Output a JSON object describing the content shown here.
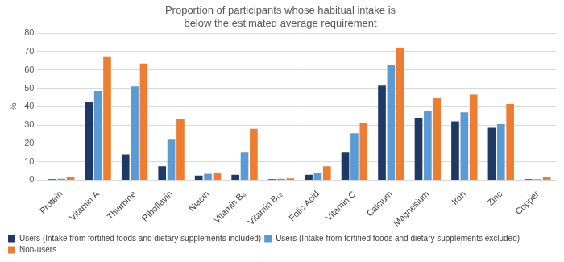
{
  "chart_data": {
    "type": "bar",
    "title": [
      "Proportion of participants whose habitual intake is",
      "below the estimated average requirement"
    ],
    "ylabel": "%",
    "categories": [
      "Protein",
      "Vitamin A",
      "Thiamine",
      "Riboflavin",
      "Niacin",
      "Vitamin B₆",
      "Vitamin B₁₂",
      "Folic Acid",
      "Vitamin C",
      "Calcium",
      "Magnesium",
      "Iron",
      "Zinc",
      "Copper"
    ],
    "series": [
      {
        "name": "Users (Intake from fortified foods and dietary supplements included)",
        "color": "#203864",
        "values": [
          0.5,
          42.5,
          14,
          7.5,
          2.5,
          3,
          0.5,
          3,
          15,
          51.5,
          34,
          32,
          28.5,
          0.5
        ]
      },
      {
        "name": "Users (Intake from fortified foods and dietary supplements excluded)",
        "color": "#5b9bd5",
        "values": [
          0.8,
          48.5,
          51,
          22,
          3.5,
          15,
          0.8,
          4,
          25.5,
          62.5,
          37.5,
          37,
          30.5,
          0.5
        ]
      },
      {
        "name": "Non-users",
        "color": "#ed7d31",
        "values": [
          1.8,
          67,
          63.5,
          33.5,
          3.8,
          28,
          1,
          7.5,
          31,
          72,
          45,
          46.5,
          41.5,
          2
        ]
      }
    ],
    "ylim": [
      0,
      80
    ],
    "yticks": [
      0,
      10,
      20,
      30,
      40,
      50,
      60,
      70,
      80
    ],
    "grid": true,
    "legend": "bottom"
  }
}
